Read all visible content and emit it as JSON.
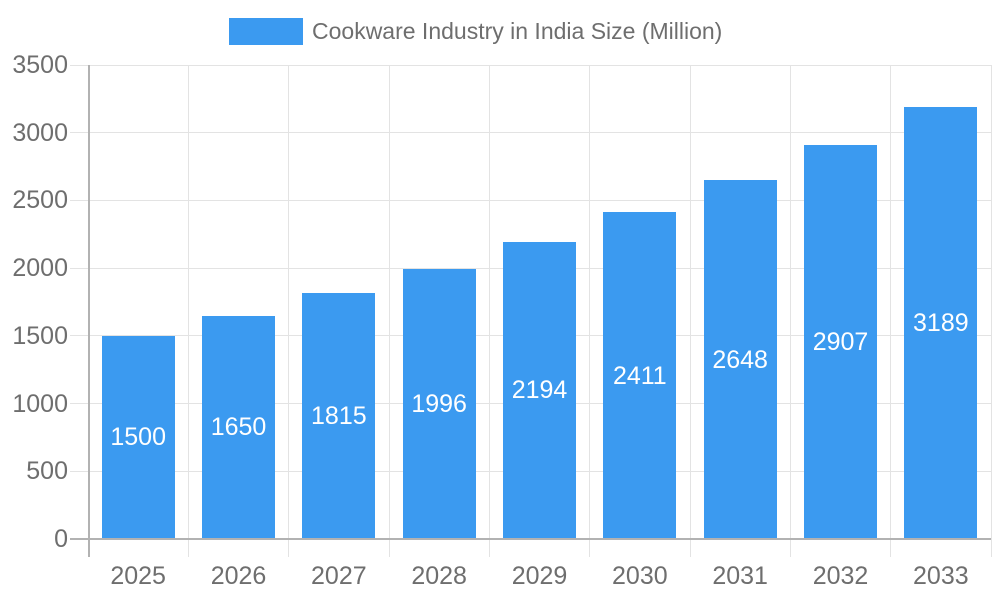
{
  "legend": {
    "label": "Cookware Industry in India Size (Million)"
  },
  "colors": {
    "bar": "#3B9AF0",
    "grid": "#E3E3E3",
    "axis": "#B2B2B2",
    "label_text": "#6E6E6E",
    "bar_label_text": "#FFFFFF",
    "background": "#FFFFFF"
  },
  "chart_data": {
    "type": "bar",
    "title": "Cookware Industry in India Size (Million)",
    "categories": [
      "2025",
      "2026",
      "2027",
      "2028",
      "2029",
      "2030",
      "2031",
      "2032",
      "2033"
    ],
    "values": [
      1500,
      1650,
      1815,
      1996,
      2194,
      2411,
      2648,
      2907,
      3189
    ],
    "series": [
      {
        "name": "Cookware Industry in India Size (Million)",
        "values": [
          1500,
          1650,
          1815,
          1996,
          2194,
          2411,
          2648,
          2907,
          3189
        ]
      }
    ],
    "xlabel": "",
    "ylabel": "",
    "ylim": [
      0,
      3500
    ],
    "yticks": [
      0,
      500,
      1000,
      1500,
      2000,
      2500,
      3000,
      3500
    ],
    "grid": true,
    "legend_position": "top",
    "bar_value_labels": true
  }
}
